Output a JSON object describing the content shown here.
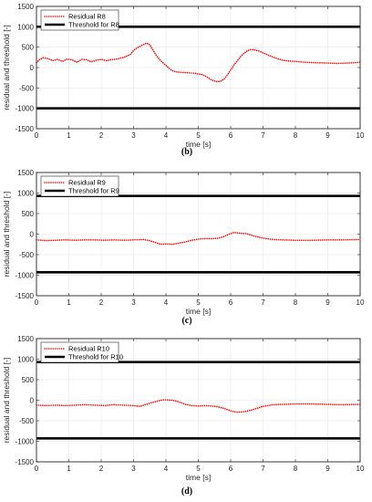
{
  "chart_data": [
    {
      "type": "line",
      "caption": "",
      "xlabel": "time [s]",
      "ylabel": "residual and threshold [-]",
      "xlim": [
        0,
        10
      ],
      "ylim": [
        -1500,
        1500
      ],
      "xticks": [
        0,
        1,
        2,
        3,
        4,
        5,
        6,
        7,
        8,
        9,
        10
      ],
      "yticks": [
        -1500,
        -1000,
        -500,
        0,
        500,
        1000,
        1500
      ],
      "grid": true,
      "legend_position": "top-left",
      "series": [
        {
          "name": "Residual R8",
          "style": "dotted",
          "color": "#ff0000",
          "x": [
            0,
            0.1,
            0.2,
            0.35,
            0.5,
            0.65,
            0.8,
            0.95,
            1.1,
            1.25,
            1.4,
            1.55,
            1.7,
            1.85,
            2.0,
            2.15,
            2.3,
            2.5,
            2.7,
            2.9,
            3.0,
            3.1,
            3.2,
            3.3,
            3.4,
            3.5,
            3.6,
            3.7,
            3.8,
            3.9,
            4.0,
            4.1,
            4.2,
            4.35,
            4.5,
            4.7,
            4.9,
            5.0,
            5.1,
            5.2,
            5.3,
            5.4,
            5.5,
            5.6,
            5.7,
            5.8,
            5.9,
            6.0,
            6.1,
            6.2,
            6.3,
            6.4,
            6.5,
            6.6,
            6.7,
            6.8,
            6.9,
            7.0,
            7.2,
            7.4,
            7.6,
            7.8,
            8.0,
            8.3,
            8.6,
            9.0,
            9.3,
            9.6,
            10.0
          ],
          "y": [
            120,
            200,
            240,
            220,
            170,
            200,
            150,
            210,
            190,
            130,
            200,
            190,
            140,
            180,
            200,
            170,
            190,
            210,
            250,
            320,
            420,
            480,
            520,
            560,
            600,
            560,
            430,
            300,
            200,
            120,
            50,
            -20,
            -80,
            -110,
            -120,
            -130,
            -140,
            -160,
            -170,
            -200,
            -250,
            -300,
            -330,
            -350,
            -330,
            -280,
            -180,
            -60,
            60,
            160,
            260,
            340,
            400,
            440,
            440,
            420,
            400,
            360,
            290,
            230,
            180,
            160,
            150,
            130,
            120,
            110,
            100,
            110,
            130
          ]
        },
        {
          "name": "Threshold for R8",
          "style": "solid-thick",
          "color": "#000000",
          "x": [
            0,
            10
          ],
          "y": [
            1000,
            1000
          ]
        },
        {
          "name": "",
          "style": "solid-thick",
          "color": "#000000",
          "x": [
            0,
            10
          ],
          "y": [
            -1000,
            -1000
          ]
        }
      ]
    },
    {
      "type": "line",
      "caption": "(b)",
      "xlabel": "time [s]",
      "ylabel": "residual and threshold [-]",
      "xlim": [
        0,
        10
      ],
      "ylim": [
        -1500,
        1500
      ],
      "xticks": [
        0,
        1,
        2,
        3,
        4,
        5,
        6,
        7,
        8,
        9,
        10
      ],
      "yticks": [
        -1500,
        -1000,
        -500,
        0,
        500,
        1000,
        1500
      ],
      "grid": true,
      "legend_position": "top-left",
      "series": [
        {
          "name": "Residual R9",
          "style": "dotted",
          "color": "#ff0000",
          "x": [
            0,
            0.3,
            0.6,
            0.9,
            1.2,
            1.5,
            1.8,
            2.1,
            2.4,
            2.7,
            3.0,
            3.3,
            3.5,
            3.7,
            3.85,
            4.0,
            4.2,
            4.4,
            4.6,
            4.8,
            5.0,
            5.2,
            5.4,
            5.6,
            5.8,
            5.95,
            6.1,
            6.3,
            6.5,
            6.7,
            6.9,
            7.1,
            7.3,
            7.6,
            8.0,
            8.5,
            9.0,
            9.5,
            10.0
          ],
          "y": [
            -140,
            -160,
            -150,
            -140,
            -150,
            -140,
            -140,
            -150,
            -140,
            -150,
            -140,
            -130,
            -160,
            -210,
            -250,
            -240,
            -250,
            -220,
            -190,
            -150,
            -120,
            -110,
            -110,
            -100,
            -60,
            0,
            40,
            20,
            10,
            -40,
            -80,
            -110,
            -130,
            -140,
            -150,
            -150,
            -140,
            -140,
            -130
          ]
        },
        {
          "name": "Threshold for R9",
          "style": "solid-thick",
          "color": "#000000",
          "x": [
            0,
            10
          ],
          "y": [
            930,
            930
          ]
        },
        {
          "name": "",
          "style": "solid-thick",
          "color": "#000000",
          "x": [
            0,
            10
          ],
          "y": [
            -930,
            -930
          ]
        }
      ]
    },
    {
      "type": "line",
      "caption": "(c)",
      "xlabel": "time [s]",
      "ylabel": "residual and threshold [-]",
      "xlim": [
        0,
        10
      ],
      "ylim": [
        -1500,
        1500
      ],
      "xticks": [
        0,
        1,
        2,
        3,
        4,
        5,
        6,
        7,
        8,
        9,
        10
      ],
      "yticks": [
        -1500,
        -1000,
        -500,
        0,
        500,
        1000,
        1500
      ],
      "grid": true,
      "legend_position": "top-left",
      "series": [
        {
          "name": "Residual R10",
          "style": "dotted",
          "color": "#ff0000",
          "x": [
            0,
            0.3,
            0.6,
            0.9,
            1.2,
            1.5,
            1.8,
            2.1,
            2.4,
            2.7,
            3.0,
            3.2,
            3.4,
            3.6,
            3.8,
            3.9,
            4.0,
            4.2,
            4.4,
            4.6,
            4.8,
            5.0,
            5.2,
            5.4,
            5.6,
            5.8,
            6.0,
            6.2,
            6.4,
            6.6,
            6.8,
            7.0,
            7.3,
            7.6,
            8.0,
            8.5,
            9.0,
            9.5,
            10.0
          ],
          "y": [
            -120,
            -130,
            -120,
            -130,
            -120,
            -110,
            -120,
            -130,
            -110,
            -120,
            -130,
            -150,
            -100,
            -50,
            -10,
            10,
            10,
            0,
            -40,
            -100,
            -130,
            -140,
            -130,
            -140,
            -160,
            -200,
            -260,
            -290,
            -280,
            -250,
            -200,
            -150,
            -110,
            -100,
            -90,
            -90,
            -100,
            -110,
            -100
          ]
        },
        {
          "name": "Threshold for R10",
          "style": "solid-thick",
          "color": "#000000",
          "x": [
            0,
            10
          ],
          "y": [
            930,
            930
          ]
        },
        {
          "name": "",
          "style": "solid-thick",
          "color": "#000000",
          "x": [
            0,
            10
          ],
          "y": [
            -930,
            -930
          ]
        }
      ]
    }
  ],
  "captions": {
    "bottom": "(d)"
  }
}
